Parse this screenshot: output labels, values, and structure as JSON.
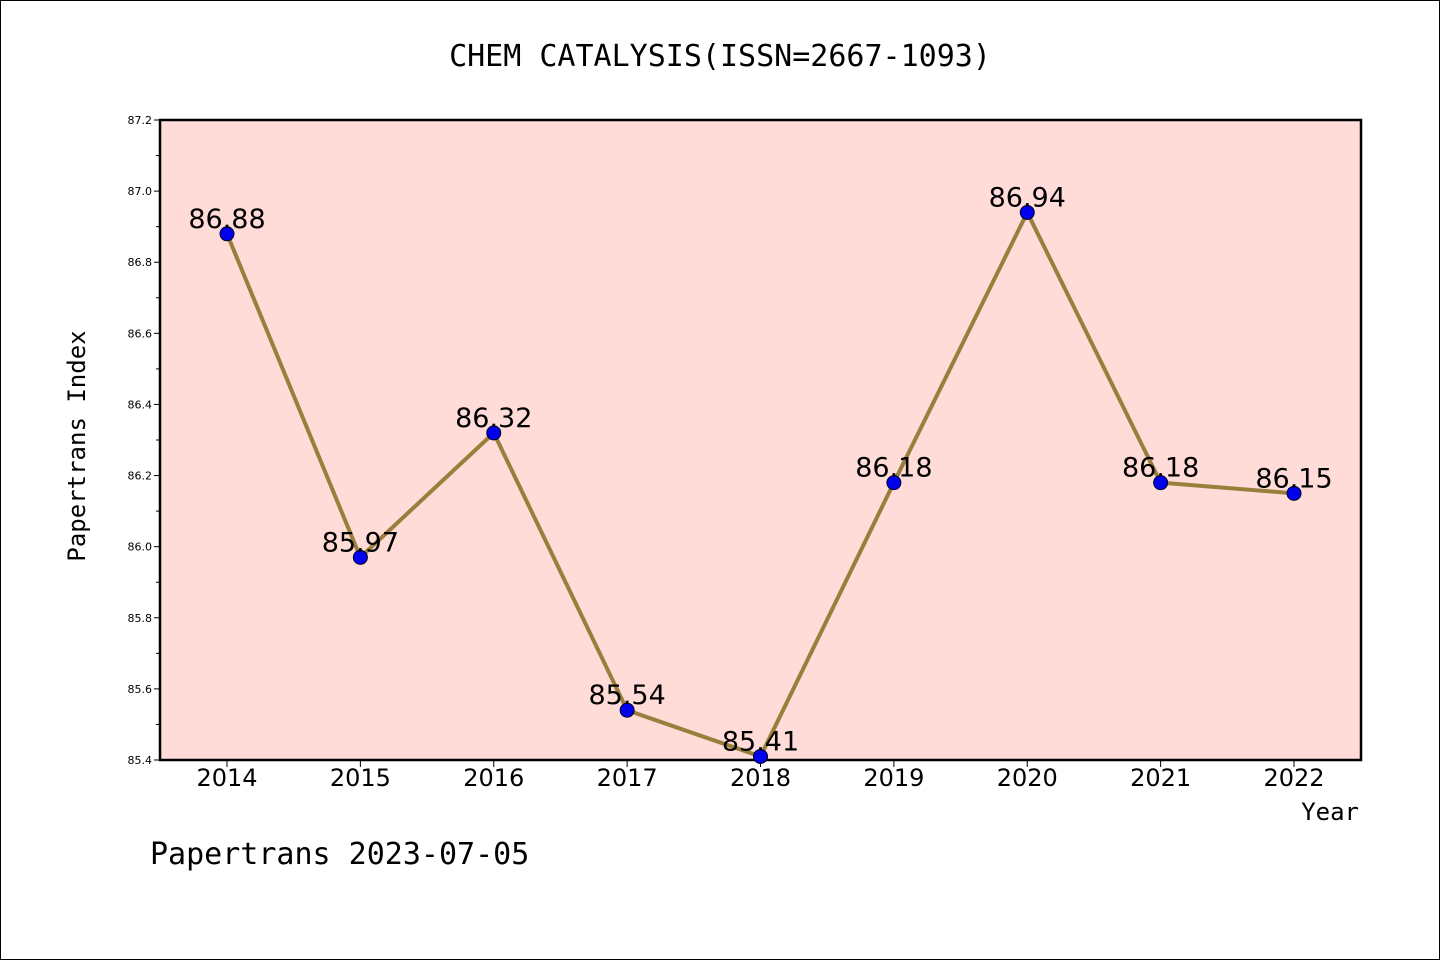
{
  "chart_data": {
    "type": "line",
    "title": "CHEM CATALYSIS(ISSN=2667-1093)",
    "xlabel": "Year",
    "ylabel": "Papertrans Index",
    "categories": [
      "2014",
      "2015",
      "2016",
      "2017",
      "2018",
      "2019",
      "2020",
      "2021",
      "2022"
    ],
    "values": [
      86.88,
      85.97,
      86.32,
      85.54,
      85.41,
      86.18,
      86.94,
      86.18,
      86.15
    ],
    "value_labels": [
      "86.88",
      "85.97",
      "86.32",
      "85.54",
      "85.41",
      "86.18",
      "86.94",
      "86.18",
      "86.15"
    ],
    "ylim": [
      85.4,
      87.2
    ],
    "yticks": [
      "85.4",
      "85.6",
      "85.8",
      "86.0",
      "86.2",
      "86.4",
      "86.6",
      "86.8",
      "87.0",
      "87.2"
    ],
    "grid": false,
    "colors": {
      "plot_background": "#ffdcd8",
      "line": "#9a7f3c",
      "marker": "#0000ee"
    }
  },
  "footer": "Papertrans 2023-07-05"
}
